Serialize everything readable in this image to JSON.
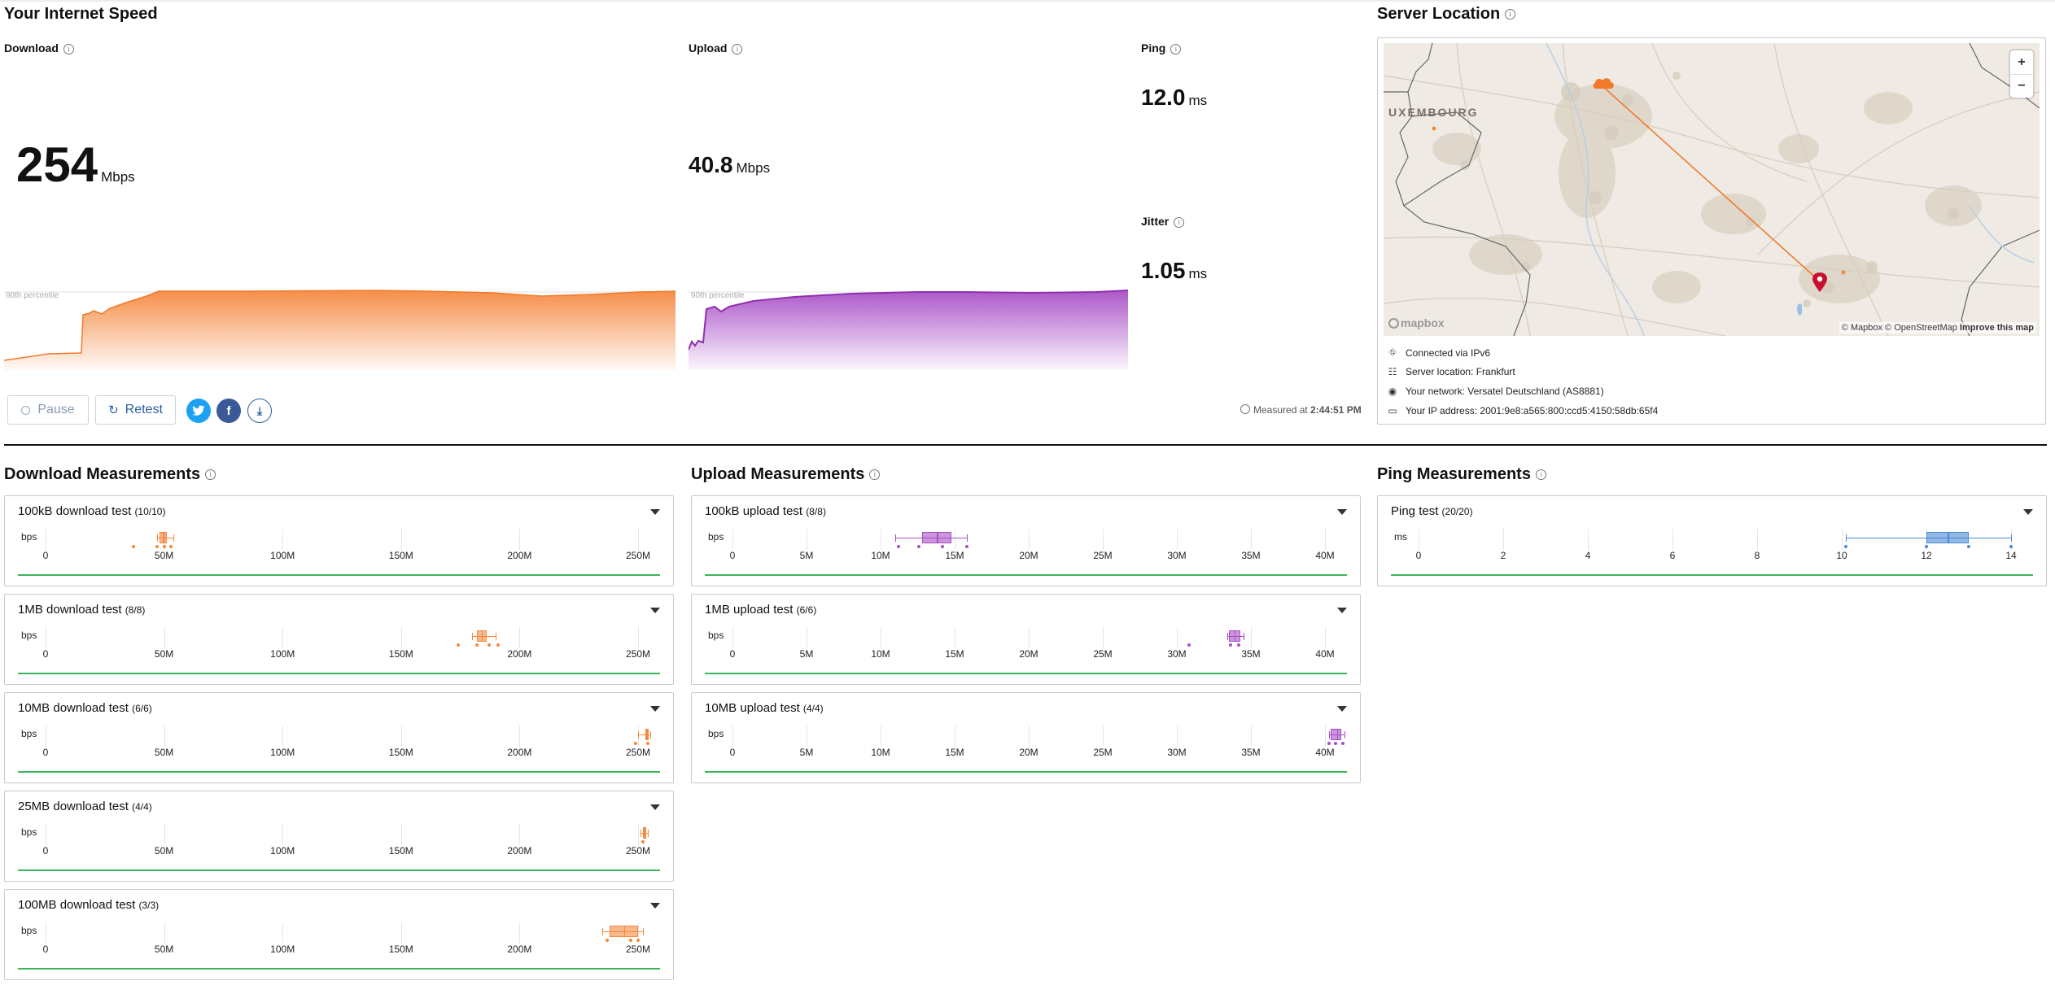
{
  "speed": {
    "title": "Your Internet Speed",
    "download": {
      "label": "Download",
      "value": "254",
      "unit": "Mbps",
      "percentile_label": "90th percentile"
    },
    "upload": {
      "label": "Upload",
      "value": "40.8",
      "unit": "Mbps",
      "percentile_label": "90th percentile"
    },
    "ping": {
      "label": "Ping",
      "value": "12.0",
      "unit": "ms"
    },
    "jitter": {
      "label": "Jitter",
      "value": "1.05",
      "unit": "ms"
    },
    "buttons": {
      "pause": "Pause",
      "retest": "Retest"
    },
    "measured_prefix": "Measured at",
    "measured_time": "2:44:51 PM"
  },
  "server": {
    "title": "Server Location",
    "map_place_label": "UXEMBOURG",
    "attribution": "© Mapbox © OpenStreetMap",
    "improve": "Improve this map",
    "mapbox_logo": "mapbox",
    "zoom_in": "+",
    "zoom_out": "−",
    "info": [
      {
        "icon": "network-icon",
        "text": "Connected via IPv6"
      },
      {
        "icon": "server-icon",
        "text": "Server location: Frankfurt"
      },
      {
        "icon": "location-pin-icon",
        "text": "Your network: Versatel Deutschland (AS8881)"
      },
      {
        "icon": "card-icon",
        "text": "Your IP address: 2001:9e8:a565:800:ccd5:4150:58db:65f4"
      }
    ]
  },
  "download_measurements": {
    "title": "Download Measurements",
    "unit": "bps",
    "ticks": [
      "0",
      "50M",
      "100M",
      "150M",
      "200M",
      "250M"
    ],
    "color": "#f5883f",
    "tests": [
      {
        "name": "100kB download test",
        "count": "(10/10)",
        "box": [
          48,
          51
        ],
        "whisk": [
          47,
          54
        ],
        "median": 49.5,
        "dots": [
          37,
          47,
          50,
          53
        ]
      },
      {
        "name": "1MB download test",
        "count": "(8/8)",
        "box": [
          182,
          186
        ],
        "whisk": [
          180,
          190
        ],
        "median": 184,
        "dots": [
          174,
          182,
          187,
          191
        ]
      },
      {
        "name": "10MB download test",
        "count": "(6/6)",
        "box": [
          253,
          254
        ],
        "whisk": [
          250,
          255
        ],
        "median": 253.5,
        "dots": [
          249,
          254
        ]
      },
      {
        "name": "25MB download test",
        "count": "(4/4)",
        "box": [
          252,
          253
        ],
        "whisk": [
          251,
          254
        ],
        "median": 252.5,
        "dots": [
          252
        ]
      },
      {
        "name": "100MB download test",
        "count": "(3/3)",
        "box": [
          238,
          250
        ],
        "whisk": [
          235,
          252
        ],
        "median": 244,
        "dots": [
          237,
          247,
          250
        ]
      }
    ]
  },
  "upload_measurements": {
    "title": "Upload Measurements",
    "unit": "bps",
    "ticks": [
      "0",
      "5M",
      "10M",
      "15M",
      "20M",
      "25M",
      "30M",
      "35M",
      "40M"
    ],
    "color": "#a84ec5",
    "tests": [
      {
        "name": "100kB upload test",
        "count": "(8/8)",
        "box": [
          12.8,
          14.8
        ],
        "whisk": [
          11.0,
          15.8
        ],
        "median": 13.8,
        "dots": [
          11.2,
          12.6,
          14.2,
          15.8
        ]
      },
      {
        "name": "1MB upload test",
        "count": "(6/6)",
        "box": [
          33.5,
          34.3
        ],
        "whisk": [
          33.4,
          34.5
        ],
        "median": 33.9,
        "dots": [
          30.8,
          33.6,
          34.2
        ]
      },
      {
        "name": "10MB upload test",
        "count": "(4/4)",
        "box": [
          40.4,
          41.1
        ],
        "whisk": [
          40.3,
          41.3
        ],
        "median": 40.8,
        "dots": [
          40.3,
          40.7,
          41.2
        ]
      }
    ]
  },
  "ping_measurements": {
    "title": "Ping Measurements",
    "unit": "ms",
    "ticks": [
      "0",
      "2",
      "4",
      "6",
      "8",
      "10",
      "12",
      "14"
    ],
    "color": "#4a89d6",
    "tests": [
      {
        "name": "Ping test",
        "count": "(20/20)",
        "box": [
          12.0,
          13.0
        ],
        "whisk": [
          10.1,
          14.0
        ],
        "median": 12.5,
        "dots": [
          10.1,
          12.0,
          13.0,
          14.0
        ]
      }
    ]
  }
}
